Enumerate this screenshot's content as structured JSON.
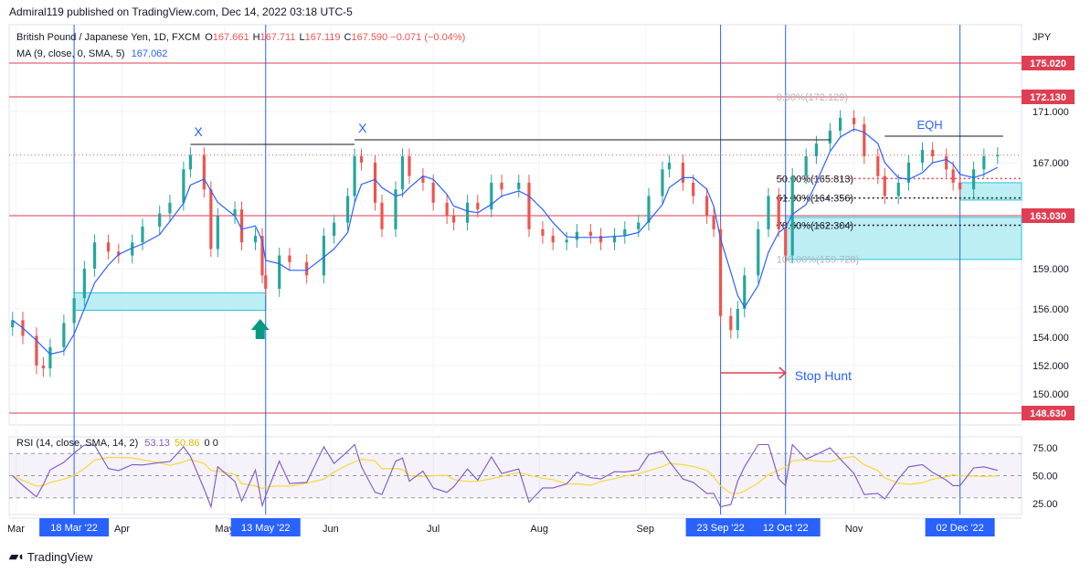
{
  "header": {
    "published": "Admiral119 published on TradingView.com, Dec 14, 2022 03:18 UTC-5"
  },
  "legend": {
    "symbol": "British Pound / Japanese Yen, 1D, FXCM",
    "ohlc": [
      {
        "k": "O",
        "v": "167.661"
      },
      {
        "k": "H",
        "v": "167.711"
      },
      {
        "k": "L",
        "v": "167.119"
      },
      {
        "k": "C",
        "v": "167.590"
      }
    ],
    "change": "−0.071 (−0.04%)",
    "ma_label": "MA (9, close, 0, SMA, 5)",
    "ma_value": "167.062",
    "rsi_label": "RSI (14, close, SMA, 14, 2)",
    "rsi_value": "53.13",
    "rsi_ma_value": "50.86",
    "rsi_extra": "0 0"
  },
  "currency": "JPY",
  "brand": "TradingView",
  "colors": {
    "up": "#26a69a",
    "down": "#ef5350",
    "ma": "#2962ff",
    "rsi": "#7e57c2",
    "rsi_ma": "#f5d93a",
    "level": "#e03e52",
    "zone": "#b2ebf2",
    "marker": "#2962ff",
    "arrow": "#089981"
  },
  "chart_data": {
    "type": "candlestick",
    "y_axis": {
      "ticks": [
        "171.000",
        "167.000",
        "163.000",
        "159.000",
        "156.000",
        "154.000",
        "152.000",
        "150.000"
      ],
      "range": [
        148.2,
        176.3
      ]
    },
    "x_axis": {
      "labels": [
        "Mar",
        "Apr",
        "May",
        "Jun",
        "Jul",
        "Aug",
        "Sep",
        "Nov"
      ],
      "highlighted": [
        "18 Mar '22",
        "13 May '22",
        "23 Sep '22",
        "12 Oct '22",
        "02 Dec '22"
      ]
    },
    "levels": [
      "175.020",
      "172.130",
      "163.030",
      "148.630"
    ],
    "fib": [
      {
        "label": "0.00%(172.129)",
        "value": 172.129
      },
      {
        "label": "50.00%(165.813)",
        "value": 165.813
      },
      {
        "label": "61.80%(164.356)",
        "value": 164.356
      },
      {
        "label": "78.60%(162.304)",
        "value": 162.304
      },
      {
        "label": "100.00%(159.728)",
        "value": 159.728
      }
    ],
    "annotations": [
      "X",
      "X",
      "EQH",
      "Stop Hunt"
    ],
    "closes": [
      {
        "d": "2022-02-28",
        "c": 155.2
      },
      {
        "d": "2022-03-03",
        "c": 154.1
      },
      {
        "d": "2022-03-07",
        "c": 152.0
      },
      {
        "d": "2022-03-09",
        "c": 151.8
      },
      {
        "d": "2022-03-11",
        "c": 153.3
      },
      {
        "d": "2022-03-15",
        "c": 155.0
      },
      {
        "d": "2022-03-18",
        "c": 156.8
      },
      {
        "d": "2022-03-21",
        "c": 159.0
      },
      {
        "d": "2022-03-24",
        "c": 161.0
      },
      {
        "d": "2022-03-28",
        "c": 160.3
      },
      {
        "d": "2022-03-31",
        "c": 160.0
      },
      {
        "d": "2022-04-04",
        "c": 161.0
      },
      {
        "d": "2022-04-07",
        "c": 162.2
      },
      {
        "d": "2022-04-12",
        "c": 163.2
      },
      {
        "d": "2022-04-15",
        "c": 164.0
      },
      {
        "d": "2022-04-19",
        "c": 166.5
      },
      {
        "d": "2022-04-21",
        "c": 167.6
      },
      {
        "d": "2022-04-25",
        "c": 165.0
      },
      {
        "d": "2022-04-27",
        "c": 160.5
      },
      {
        "d": "2022-04-29",
        "c": 163.0
      },
      {
        "d": "2022-05-04",
        "c": 163.5
      },
      {
        "d": "2022-05-06",
        "c": 161.0
      },
      {
        "d": "2022-05-10",
        "c": 161.5
      },
      {
        "d": "2022-05-12",
        "c": 158.5
      },
      {
        "d": "2022-05-13",
        "c": 157.5
      },
      {
        "d": "2022-05-17",
        "c": 160.0
      },
      {
        "d": "2022-05-20",
        "c": 159.5
      },
      {
        "d": "2022-05-25",
        "c": 158.5
      },
      {
        "d": "2022-05-30",
        "c": 161.5
      },
      {
        "d": "2022-06-02",
        "c": 162.5
      },
      {
        "d": "2022-06-06",
        "c": 164.5
      },
      {
        "d": "2022-06-08",
        "c": 167.5
      },
      {
        "d": "2022-06-10",
        "c": 167.0
      },
      {
        "d": "2022-06-14",
        "c": 164.0
      },
      {
        "d": "2022-06-16",
        "c": 162.0
      },
      {
        "d": "2022-06-20",
        "c": 165.0
      },
      {
        "d": "2022-06-22",
        "c": 167.5
      },
      {
        "d": "2022-06-24",
        "c": 166.0
      },
      {
        "d": "2022-06-28",
        "c": 165.5
      },
      {
        "d": "2022-07-01",
        "c": 164.0
      },
      {
        "d": "2022-07-05",
        "c": 163.0
      },
      {
        "d": "2022-07-07",
        "c": 162.5
      },
      {
        "d": "2022-07-11",
        "c": 164.0
      },
      {
        "d": "2022-07-14",
        "c": 163.5
      },
      {
        "d": "2022-07-18",
        "c": 165.5
      },
      {
        "d": "2022-07-21",
        "c": 165.0
      },
      {
        "d": "2022-07-26",
        "c": 165.5
      },
      {
        "d": "2022-07-29",
        "c": 162.0
      },
      {
        "d": "2022-08-02",
        "c": 161.5
      },
      {
        "d": "2022-08-05",
        "c": 161.0
      },
      {
        "d": "2022-08-09",
        "c": 161.2
      },
      {
        "d": "2022-08-12",
        "c": 161.8
      },
      {
        "d": "2022-08-16",
        "c": 161.5
      },
      {
        "d": "2022-08-19",
        "c": 161.0
      },
      {
        "d": "2022-08-23",
        "c": 161.5
      },
      {
        "d": "2022-08-26",
        "c": 162.0
      },
      {
        "d": "2022-08-30",
        "c": 162.5
      },
      {
        "d": "2022-09-02",
        "c": 164.5
      },
      {
        "d": "2022-09-06",
        "c": 166.5
      },
      {
        "d": "2022-09-08",
        "c": 167.0
      },
      {
        "d": "2022-09-12",
        "c": 165.5
      },
      {
        "d": "2022-09-15",
        "c": 164.5
      },
      {
        "d": "2022-09-19",
        "c": 163.0
      },
      {
        "d": "2022-09-21",
        "c": 162.0
      },
      {
        "d": "2022-09-23",
        "c": 155.5
      },
      {
        "d": "2022-09-26",
        "c": 154.5
      },
      {
        "d": "2022-09-28",
        "c": 156.0
      },
      {
        "d": "2022-09-30",
        "c": 158.5
      },
      {
        "d": "2022-10-04",
        "c": 162.0
      },
      {
        "d": "2022-10-07",
        "c": 164.5
      },
      {
        "d": "2022-10-10",
        "c": 162.0
      },
      {
        "d": "2022-10-12",
        "c": 160.0
      },
      {
        "d": "2022-10-14",
        "c": 166.0
      },
      {
        "d": "2022-10-18",
        "c": 167.5
      },
      {
        "d": "2022-10-21",
        "c": 168.5
      },
      {
        "d": "2022-10-25",
        "c": 169.5
      },
      {
        "d": "2022-10-28",
        "c": 170.5
      },
      {
        "d": "2022-11-01",
        "c": 170.0
      },
      {
        "d": "2022-11-04",
        "c": 167.5
      },
      {
        "d": "2022-11-08",
        "c": 166.0
      },
      {
        "d": "2022-11-10",
        "c": 164.5
      },
      {
        "d": "2022-11-14",
        "c": 165.5
      },
      {
        "d": "2022-11-17",
        "c": 167.0
      },
      {
        "d": "2022-11-21",
        "c": 168.0
      },
      {
        "d": "2022-11-24",
        "c": 167.5
      },
      {
        "d": "2022-11-28",
        "c": 166.5
      },
      {
        "d": "2022-11-30",
        "c": 165.5
      },
      {
        "d": "2022-12-02",
        "c": 165.0
      },
      {
        "d": "2022-12-06",
        "c": 166.5
      },
      {
        "d": "2022-12-09",
        "c": 167.5
      },
      {
        "d": "2022-12-13",
        "c": 167.6
      }
    ],
    "rsi_axis": {
      "ticks": [
        "75.00",
        "50.00",
        "25.00"
      ],
      "range": [
        15,
        85
      ]
    }
  }
}
